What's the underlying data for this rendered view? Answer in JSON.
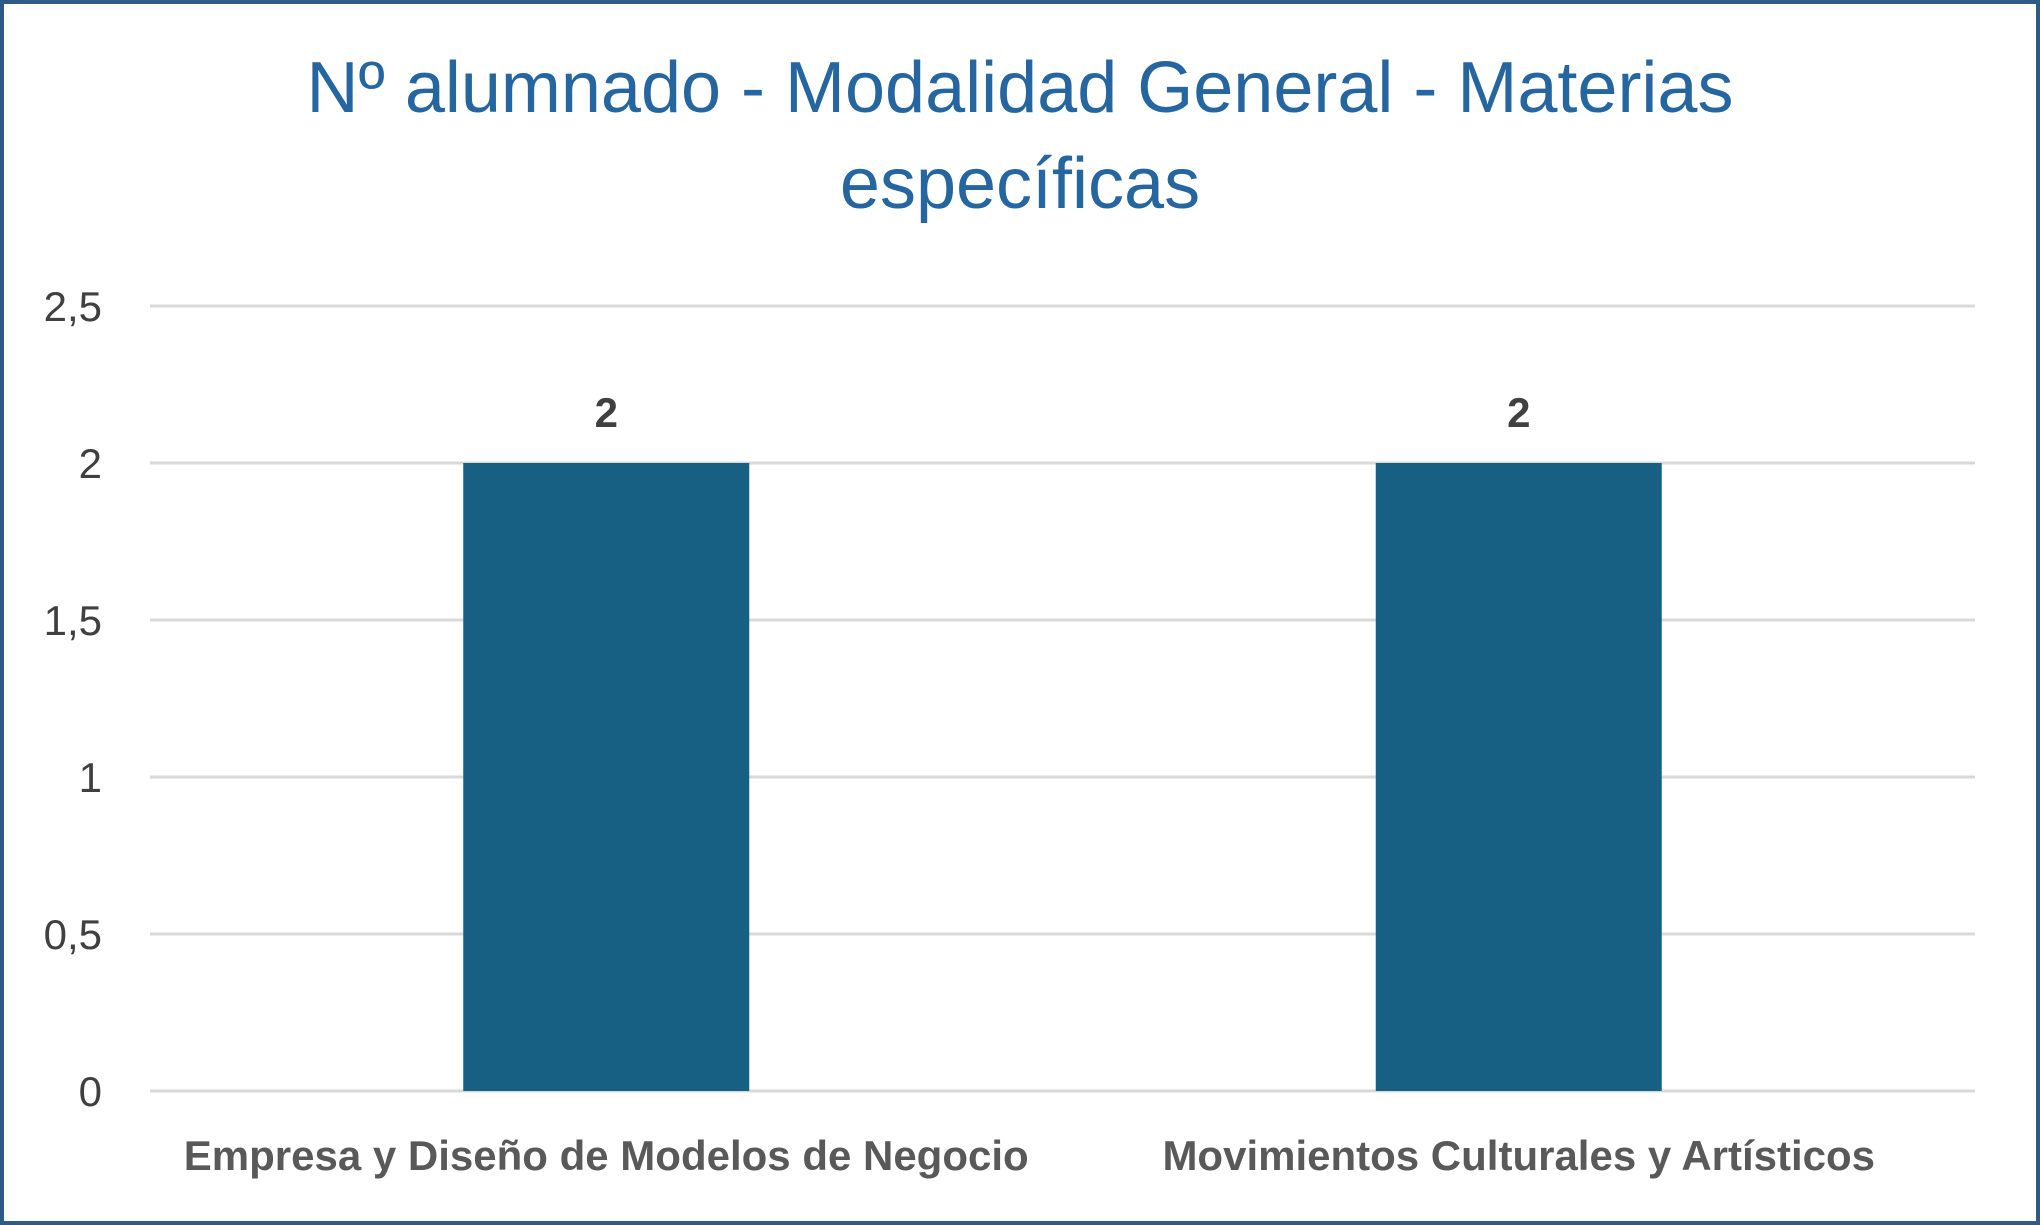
{
  "chart_data": {
    "type": "bar",
    "title_lines": [
      "Nº alumnado - Modalidad General - Materias",
      "específicas"
    ],
    "title": "Nº alumnado - Modalidad General - Materias específicas",
    "categories": [
      "Empresa y Diseño de Modelos de Negocio",
      "Movimientos Culturales y Artísticos"
    ],
    "values": [
      2,
      2
    ],
    "data_labels": [
      "2",
      "2"
    ],
    "ylim": [
      0,
      2.5
    ],
    "yticks": [
      0,
      0.5,
      1,
      1.5,
      2,
      2.5
    ],
    "ytick_labels": [
      "0",
      "0,5",
      "1",
      "1,5",
      "2",
      "2,5"
    ],
    "xlabel": "",
    "ylabel": "",
    "grid": true,
    "legend": "none",
    "colors": {
      "bar": "#176083",
      "grid": "#d9d9d9",
      "title": "#2565a0",
      "border": "#2e5a86"
    }
  }
}
